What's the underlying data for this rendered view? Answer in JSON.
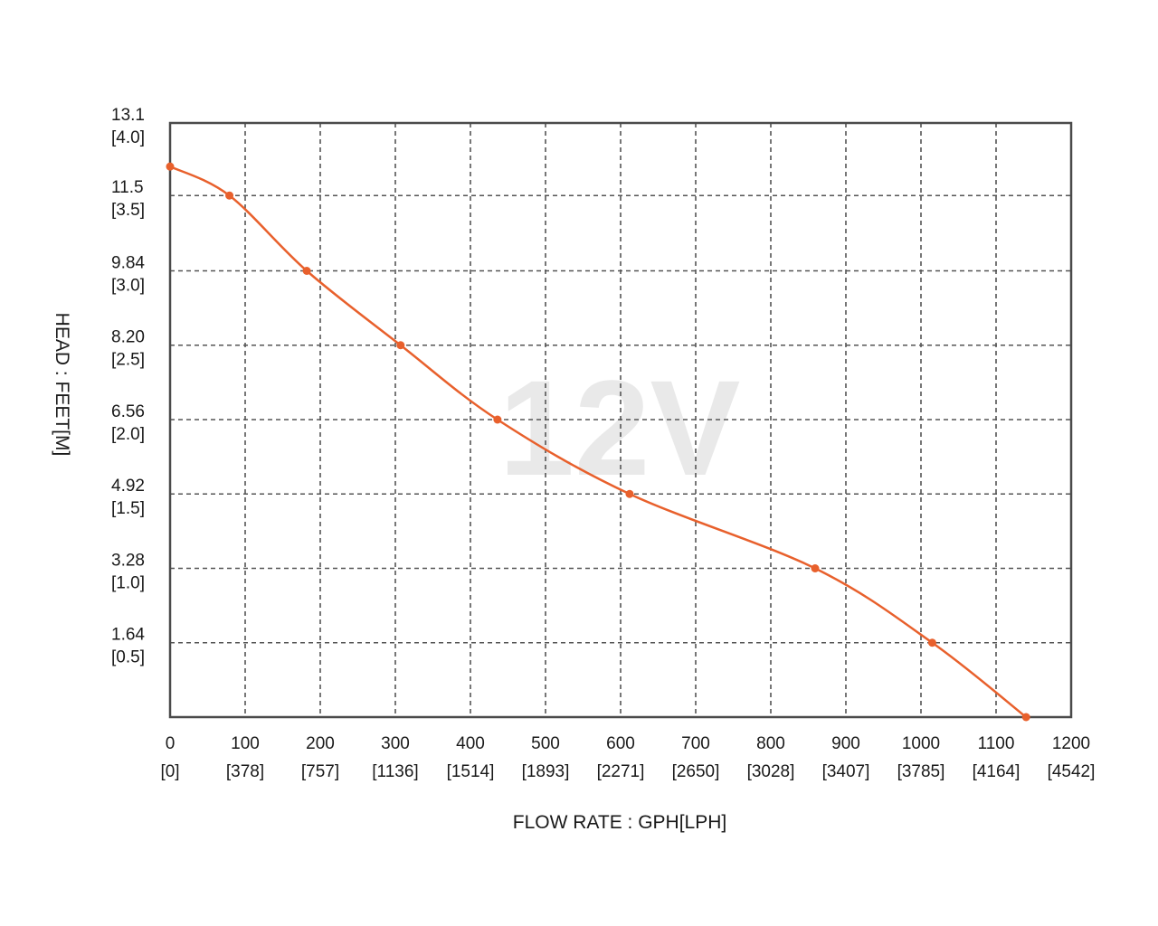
{
  "chart_data": {
    "type": "line",
    "watermark": "12V",
    "xlabel": "FLOW RATE : GPH[LPH]",
    "ylabel": "HEAD : FEET[M]",
    "xlim": [
      0,
      1200
    ],
    "ylim": [
      0,
      13.1
    ],
    "grid": true,
    "x_ticks": [
      {
        "value": 0,
        "label": "0",
        "sublabel": "[0]"
      },
      {
        "value": 100,
        "label": "100",
        "sublabel": "[378]"
      },
      {
        "value": 200,
        "label": "200",
        "sublabel": "[757]"
      },
      {
        "value": 300,
        "label": "300",
        "sublabel": "[1136]"
      },
      {
        "value": 400,
        "label": "400",
        "sublabel": "[1514]"
      },
      {
        "value": 500,
        "label": "500",
        "sublabel": "[1893]"
      },
      {
        "value": 600,
        "label": "600",
        "sublabel": "[2271]"
      },
      {
        "value": 700,
        "label": "700",
        "sublabel": "[2650]"
      },
      {
        "value": 800,
        "label": "800",
        "sublabel": "[3028]"
      },
      {
        "value": 900,
        "label": "900",
        "sublabel": "[3407]"
      },
      {
        "value": 1000,
        "label": "1000",
        "sublabel": "[3785]"
      },
      {
        "value": 1100,
        "label": "1100",
        "sublabel": "[4164]"
      },
      {
        "value": 1200,
        "label": "1200",
        "sublabel": "[4542]"
      }
    ],
    "y_ticks": [
      {
        "value": 1.64,
        "label": "1.64",
        "sublabel": "[0.5]"
      },
      {
        "value": 3.28,
        "label": "3.28",
        "sublabel": "[1.0]"
      },
      {
        "value": 4.92,
        "label": "4.92",
        "sublabel": "[1.5]"
      },
      {
        "value": 6.56,
        "label": "6.56",
        "sublabel": "[2.0]"
      },
      {
        "value": 8.2,
        "label": "8.20",
        "sublabel": "[2.5]"
      },
      {
        "value": 9.84,
        "label": "9.84",
        "sublabel": "[3.0]"
      },
      {
        "value": 11.5,
        "label": "11.5",
        "sublabel": "[3.5]"
      },
      {
        "value": 13.1,
        "label": "13.1",
        "sublabel": "[4.0]"
      }
    ],
    "series": [
      {
        "color": "#e8602c",
        "x": [
          0,
          79,
          182,
          307,
          436,
          612,
          859,
          1015,
          1140
        ],
        "y": [
          12.14,
          11.5,
          9.84,
          8.2,
          6.56,
          4.92,
          3.28,
          1.64,
          0
        ]
      }
    ]
  }
}
